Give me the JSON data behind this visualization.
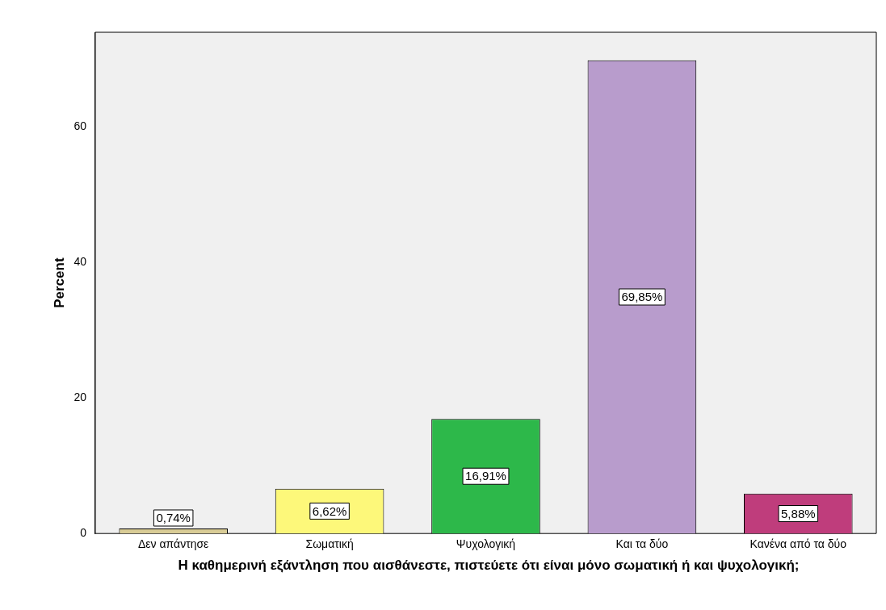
{
  "chart_data": {
    "type": "bar",
    "xlabel": "Η καθημερινή εξάντληση που αισθάνεστε, πιστεύετε ότι είναι μόνο σωματική ή και ψυχολογική;",
    "ylabel": "Percent",
    "categories": [
      "Δεν απάντησε",
      "Σωματική",
      "Ψυχολογική",
      "Και τα δύο",
      "Κανένα από τα δύο"
    ],
    "values": [
      0.74,
      6.62,
      16.91,
      69.85,
      5.88
    ],
    "value_labels": [
      "0,74%",
      "6,62%",
      "16,91%",
      "69,85%",
      "5,88%"
    ],
    "colors": [
      "#d9cc96",
      "#fdf87a",
      "#2db84a",
      "#b89ccc",
      "#bf3d7c"
    ],
    "ylim": [
      0,
      74
    ],
    "yticks": [
      0,
      20,
      40,
      60
    ],
    "grid": false,
    "legend": false
  }
}
